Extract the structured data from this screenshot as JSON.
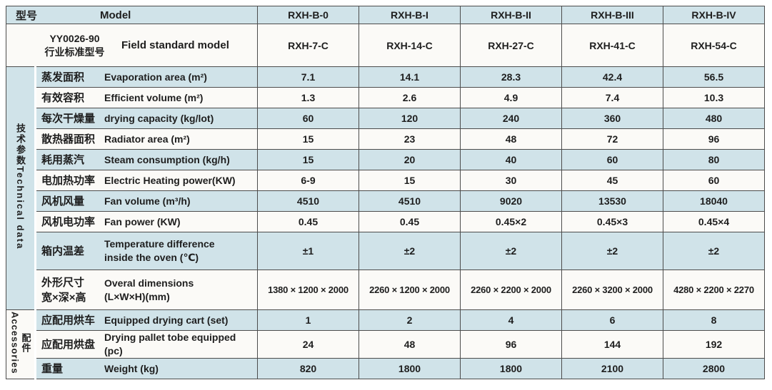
{
  "header": {
    "row1": {
      "cn": "型号",
      "en": "Model",
      "models": [
        "RXH-B-0",
        "RXH-B-I",
        "RXH-B-II",
        "RXH-B-III",
        "RXH-B-IV"
      ]
    },
    "row2": {
      "cn_line1": "YY0026-90",
      "cn_line2": "行业标准型号",
      "en": "Field standard model",
      "models": [
        "RXH-7-C",
        "RXH-14-C",
        "RXH-27-C",
        "RXH-41-C",
        "RXH-54-C"
      ]
    }
  },
  "sections": [
    {
      "id": "technical-data",
      "label_cn": "技术参数",
      "label_en": "Technical data",
      "rows": [
        {
          "cn": "蒸发面积",
          "en": "Evaporation area (m²)",
          "values": [
            "7.1",
            "14.1",
            "28.3",
            "42.4",
            "56.5"
          ]
        },
        {
          "cn": "有效容积",
          "en": "Efficient volume (m²)",
          "values": [
            "1.3",
            "2.6",
            "4.9",
            "7.4",
            "10.3"
          ]
        },
        {
          "cn": "每次干燥量",
          "en": "drying capacity (kg/lot)",
          "values": [
            "60",
            "120",
            "240",
            "360",
            "480"
          ]
        },
        {
          "cn": "散热器面积",
          "en": "Radiator area (m²)",
          "values": [
            "15",
            "23",
            "48",
            "72",
            "96"
          ]
        },
        {
          "cn": "耗用蒸汽",
          "en": "Steam consumption (kg/h)",
          "values": [
            "15",
            "20",
            "40",
            "60",
            "80"
          ]
        },
        {
          "cn": "电加热功率",
          "en": "Electric Heating power(KW)",
          "values": [
            "6-9",
            "15",
            "30",
            "45",
            "60"
          ]
        },
        {
          "cn": "风机风量",
          "en": "Fan volume (m³/h)",
          "values": [
            "4510",
            "4510",
            "9020",
            "13530",
            "18040"
          ]
        },
        {
          "cn": "风机电功率",
          "en": "Fan power (KW)",
          "values": [
            "0.45",
            "0.45",
            "0.45×2",
            "0.45×3",
            "0.45×4"
          ]
        },
        {
          "cn": "箱内温差",
          "en": "Temperature difference",
          "en2": "inside the oven (℃)",
          "values": [
            "±1",
            "±2",
            "±2",
            "±2",
            "±2"
          ]
        },
        {
          "cn": "外形尺寸",
          "cn2": "宽×深×高",
          "en": "Overal dimensions",
          "en2": "(L×W×H)(mm)",
          "values": [
            "1380 × 1200 × 2000",
            "2260 × 1200 × 2000",
            "2260 × 2200 × 2000",
            "2260 × 3200 × 2000",
            "4280 × 2200 × 2270"
          ]
        }
      ]
    },
    {
      "id": "accessories",
      "label_cn": "配件",
      "label_en": "Accessories",
      "rows": [
        {
          "cn": "应配用烘车",
          "en": "Equipped drying cart (set)",
          "values": [
            "1",
            "2",
            "4",
            "6",
            "8"
          ]
        },
        {
          "cn": "应配用烘盘",
          "en": "Drying pallet tobe equipped (pc)",
          "values": [
            "24",
            "48",
            "96",
            "144",
            "192"
          ]
        },
        {
          "cn": "重量",
          "en": "Weight (kg)",
          "values": [
            "820",
            "1800",
            "1800",
            "2100",
            "2800"
          ]
        }
      ]
    }
  ],
  "colors": {
    "row_blue": "#d0e3e9",
    "row_white": "#fbfaf7",
    "border": "#4c4c4c",
    "text": "#1e1e1e"
  }
}
